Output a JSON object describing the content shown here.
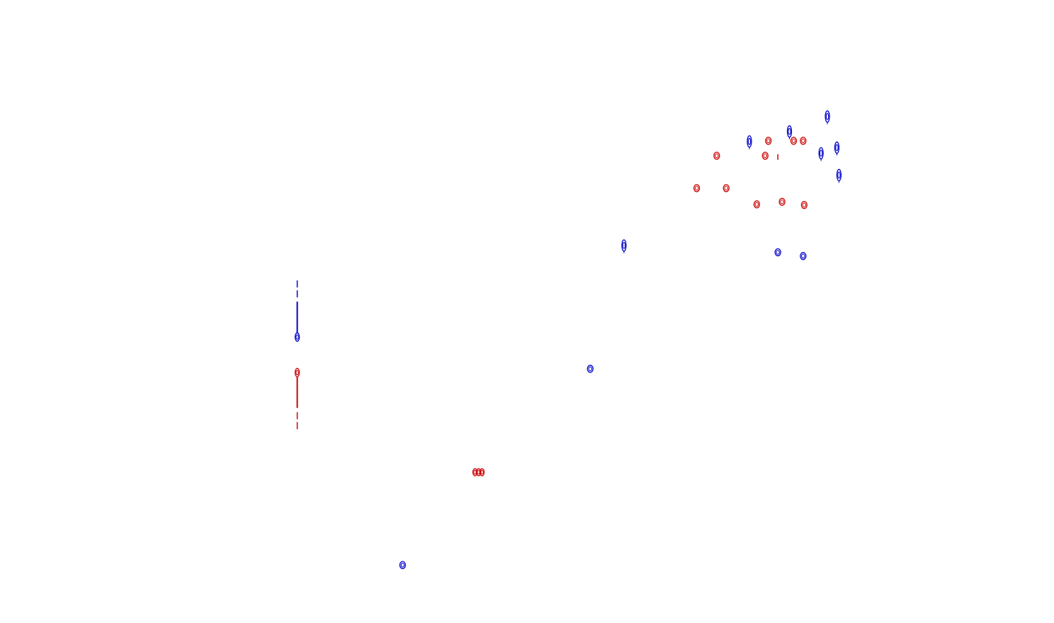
{
  "chart_data": {
    "type": "scatter",
    "title": "",
    "xlabel": "",
    "ylabel": "",
    "xlim": [
      0,
      100
    ],
    "ylim": [
      0,
      100
    ],
    "grid": false,
    "axes_visible": false,
    "mark_style": "contour",
    "series": [
      {
        "color": "#0000cc",
        "points": [
          {
            "x": 28.2,
            "y": 45.9,
            "shape": "vertical-streak"
          },
          {
            "x": 38.2,
            "y": 9.3,
            "shape": "ring"
          },
          {
            "x": 56.0,
            "y": 40.8,
            "shape": "ring"
          },
          {
            "x": 59.2,
            "y": 60.6,
            "shape": "tall-ring"
          },
          {
            "x": 71.1,
            "y": 77.3,
            "shape": "tall-ring"
          },
          {
            "x": 73.8,
            "y": 59.5,
            "shape": "ring"
          },
          {
            "x": 74.9,
            "y": 78.9,
            "shape": "tall-ring"
          },
          {
            "x": 76.2,
            "y": 58.9,
            "shape": "ring"
          },
          {
            "x": 77.9,
            "y": 75.4,
            "shape": "tall-ring"
          },
          {
            "x": 78.5,
            "y": 81.3,
            "shape": "tall-ring"
          },
          {
            "x": 79.4,
            "y": 76.3,
            "shape": "tall-ring"
          },
          {
            "x": 79.6,
            "y": 71.9,
            "shape": "tall-ring"
          }
        ]
      },
      {
        "color": "#cc0000",
        "points": [
          {
            "x": 28.2,
            "y": 40.2,
            "shape": "vertical-streak"
          },
          {
            "x": 45.4,
            "y": 24.2,
            "shape": "ring-cluster"
          },
          {
            "x": 66.1,
            "y": 69.8,
            "shape": "ring"
          },
          {
            "x": 68.0,
            "y": 75.0,
            "shape": "ring"
          },
          {
            "x": 68.9,
            "y": 69.8,
            "shape": "ring"
          },
          {
            "x": 71.8,
            "y": 67.2,
            "shape": "ring"
          },
          {
            "x": 72.6,
            "y": 75.0,
            "shape": "ring"
          },
          {
            "x": 72.9,
            "y": 77.4,
            "shape": "ring"
          },
          {
            "x": 73.8,
            "y": 74.8,
            "shape": "tick"
          },
          {
            "x": 74.2,
            "y": 67.6,
            "shape": "ring"
          },
          {
            "x": 75.3,
            "y": 77.4,
            "shape": "ring"
          },
          {
            "x": 76.2,
            "y": 77.4,
            "shape": "ring"
          },
          {
            "x": 76.3,
            "y": 67.1,
            "shape": "ring"
          }
        ]
      }
    ]
  }
}
